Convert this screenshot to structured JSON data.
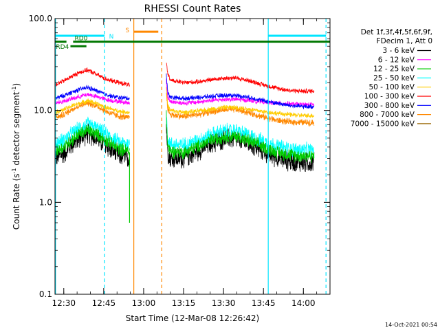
{
  "chart_data": {
    "type": "line",
    "title": "RHESSI Count Rates",
    "xlabel": "Start Time (12-Mar-08 12:26:42)",
    "ylabel_parts": [
      "Count Rate (s",
      "-1",
      " detector segment",
      "-1",
      ")"
    ],
    "ylabel": "Count Rate (s-1 detector segment-1)",
    "y_scale": "log",
    "ylim": [
      0.1,
      100.0
    ],
    "y_ticks": [
      {
        "value": 0.1,
        "label": "0.1"
      },
      {
        "value": 1.0,
        "label": "1.0"
      },
      {
        "value": 10.0,
        "label": "10.0"
      },
      {
        "value": 100.0,
        "label": "100.0"
      }
    ],
    "xlim_minutes": [
      746.7,
      850.0
    ],
    "x_ticks": [
      {
        "value": 750,
        "label": "12:30"
      },
      {
        "value": 765,
        "label": "12:45"
      },
      {
        "value": 780,
        "label": "13:00"
      },
      {
        "value": 795,
        "label": "13:15"
      },
      {
        "value": 810,
        "label": "13:30"
      },
      {
        "value": 825,
        "label": "13:45"
      },
      {
        "value": 840,
        "label": "14:00"
      }
    ],
    "grid": false,
    "legend_position": "right",
    "legend_header": [
      "Det 1f,3f,4f,5f,6f,9f,",
      "FDecim 1, Att 0"
    ],
    "series": [
      {
        "name": "3 - 6 keV",
        "color": "#000000",
        "pre": [
          [
            746.7,
            3.0
          ],
          [
            750,
            3.4
          ],
          [
            753,
            4.3
          ],
          [
            756,
            5.0
          ],
          [
            759,
            5.6
          ],
          [
            762,
            5.1
          ],
          [
            765,
            4.3
          ],
          [
            768,
            3.7
          ],
          [
            771,
            3.2
          ],
          [
            774.7,
            3.0
          ]
        ],
        "post": [
          [
            788.5,
            7.0
          ],
          [
            789,
            3.6
          ],
          [
            790,
            3.0
          ],
          [
            795,
            3.0
          ],
          [
            800,
            3.6
          ],
          [
            805,
            4.3
          ],
          [
            810,
            4.9
          ],
          [
            815,
            4.9
          ],
          [
            820,
            4.3
          ],
          [
            825,
            3.6
          ],
          [
            830,
            3.1
          ],
          [
            835,
            2.8
          ],
          [
            840,
            2.7
          ],
          [
            844,
            2.7
          ]
        ],
        "noise": 0.22
      },
      {
        "name": "6 - 12 keV",
        "color": "#ff00ff",
        "pre": [
          [
            746.7,
            12.0
          ],
          [
            750,
            12.6
          ],
          [
            753,
            13.4
          ],
          [
            756,
            14.2
          ],
          [
            759,
            15.0
          ],
          [
            762,
            14.2
          ],
          [
            765,
            13.4
          ],
          [
            768,
            12.8
          ],
          [
            771,
            12.5
          ],
          [
            774.7,
            12.0
          ]
        ],
        "post": [
          [
            788.5,
            22.0
          ],
          [
            789,
            14.0
          ],
          [
            790,
            12.5
          ],
          [
            795,
            12.0
          ],
          [
            800,
            12.3
          ],
          [
            805,
            12.8
          ],
          [
            810,
            13.2
          ],
          [
            815,
            13.2
          ],
          [
            820,
            12.8
          ],
          [
            825,
            12.4
          ],
          [
            830,
            12.0
          ],
          [
            835,
            11.8
          ],
          [
            840,
            11.6
          ],
          [
            844,
            11.6
          ]
        ],
        "noise": 0.05
      },
      {
        "name": "12 - 25 keV",
        "color": "#00cc00",
        "pre": [
          [
            746.7,
            3.6
          ],
          [
            750,
            4.0
          ],
          [
            753,
            4.8
          ],
          [
            756,
            5.6
          ],
          [
            759,
            6.1
          ],
          [
            762,
            5.6
          ],
          [
            765,
            4.9
          ],
          [
            768,
            4.3
          ],
          [
            771,
            3.8
          ],
          [
            774.7,
            3.6
          ]
        ],
        "post": [
          [
            788.5,
            9.0
          ],
          [
            789,
            4.2
          ],
          [
            790,
            3.6
          ],
          [
            795,
            3.5
          ],
          [
            800,
            4.0
          ],
          [
            805,
            4.7
          ],
          [
            810,
            5.2
          ],
          [
            815,
            5.2
          ],
          [
            820,
            4.6
          ],
          [
            825,
            4.0
          ],
          [
            830,
            3.5
          ],
          [
            835,
            3.3
          ],
          [
            840,
            3.2
          ],
          [
            844,
            3.2
          ]
        ],
        "noise": 0.14
      },
      {
        "name": "25 - 50 keV",
        "color": "#00ffff",
        "pre": [
          [
            746.7,
            4.3
          ],
          [
            750,
            4.8
          ],
          [
            753,
            5.6
          ],
          [
            756,
            6.4
          ],
          [
            759,
            7.1
          ],
          [
            762,
            6.5
          ],
          [
            765,
            5.7
          ],
          [
            768,
            5.0
          ],
          [
            771,
            4.5
          ],
          [
            774.7,
            4.3
          ]
        ],
        "post": [
          [
            788.5,
            10.0
          ],
          [
            789,
            5.0
          ],
          [
            790,
            4.3
          ],
          [
            795,
            4.2
          ],
          [
            800,
            4.7
          ],
          [
            805,
            5.4
          ],
          [
            810,
            6.0
          ],
          [
            815,
            6.0
          ],
          [
            820,
            5.3
          ],
          [
            825,
            4.6
          ],
          [
            830,
            4.1
          ],
          [
            835,
            3.8
          ],
          [
            840,
            3.7
          ],
          [
            844,
            3.7
          ]
        ],
        "noise": 0.16
      },
      {
        "name": "50 - 100 keV",
        "color": "#ffcc00",
        "pre": [
          [
            746.7,
            9.5
          ],
          [
            750,
            10.2
          ],
          [
            753,
            11.2
          ],
          [
            756,
            12.0
          ],
          [
            759,
            12.8
          ],
          [
            762,
            12.0
          ],
          [
            765,
            11.0
          ],
          [
            768,
            10.3
          ],
          [
            771,
            9.8
          ],
          [
            774.7,
            9.5
          ]
        ],
        "post": [
          [
            788.5,
            18.0
          ],
          [
            789,
            11.5
          ],
          [
            790,
            10.0
          ],
          [
            795,
            9.5
          ],
          [
            800,
            9.8
          ],
          [
            805,
            10.3
          ],
          [
            810,
            10.8
          ],
          [
            815,
            10.8
          ],
          [
            820,
            10.3
          ],
          [
            825,
            9.7
          ],
          [
            830,
            9.3
          ],
          [
            835,
            9.0
          ],
          [
            840,
            8.8
          ],
          [
            844,
            8.8
          ]
        ],
        "noise": 0.05
      },
      {
        "name": "100 - 300 keV",
        "color": "#ff0000",
        "pre": [
          [
            746.7,
            19.0
          ],
          [
            750,
            21.0
          ],
          [
            753,
            23.5
          ],
          [
            756,
            26.0
          ],
          [
            759,
            27.5
          ],
          [
            762,
            25.0
          ],
          [
            765,
            22.5
          ],
          [
            768,
            21.0
          ],
          [
            771,
            20.0
          ],
          [
            774.7,
            19.0
          ]
        ],
        "post": [
          [
            788.5,
            33.0
          ],
          [
            789,
            25.0
          ],
          [
            790,
            21.5
          ],
          [
            795,
            20.0
          ],
          [
            800,
            20.5
          ],
          [
            805,
            21.5
          ],
          [
            810,
            22.5
          ],
          [
            815,
            22.5
          ],
          [
            820,
            21.0
          ],
          [
            825,
            19.0
          ],
          [
            830,
            17.5
          ],
          [
            835,
            16.5
          ],
          [
            840,
            16.2
          ],
          [
            844,
            16.3
          ]
        ],
        "noise": 0.05
      },
      {
        "name": "300 - 800 keV",
        "color": "#0000ff",
        "pre": [
          [
            746.7,
            13.5
          ],
          [
            750,
            14.5
          ],
          [
            753,
            15.8
          ],
          [
            756,
            17.0
          ],
          [
            759,
            17.8
          ],
          [
            762,
            16.5
          ],
          [
            765,
            15.2
          ],
          [
            768,
            14.3
          ],
          [
            771,
            13.8
          ],
          [
            774.7,
            13.5
          ]
        ],
        "post": [
          [
            788.5,
            25.0
          ],
          [
            789,
            16.0
          ],
          [
            790,
            14.0
          ],
          [
            795,
            13.5
          ],
          [
            800,
            13.8
          ],
          [
            805,
            14.2
          ],
          [
            810,
            14.6
          ],
          [
            815,
            14.6
          ],
          [
            820,
            13.8
          ],
          [
            825,
            12.8
          ],
          [
            830,
            12.0
          ],
          [
            835,
            11.3
          ],
          [
            840,
            11.0
          ],
          [
            844,
            11.0
          ]
        ],
        "noise": 0.05
      },
      {
        "name": "800 - 7000 keV",
        "color": "#ff8800",
        "pre": [
          [
            746.7,
            8.3
          ],
          [
            750,
            9.0
          ],
          [
            753,
            10.3
          ],
          [
            756,
            11.3
          ],
          [
            759,
            12.1
          ],
          [
            762,
            11.3
          ],
          [
            765,
            10.1
          ],
          [
            768,
            9.2
          ],
          [
            771,
            8.6
          ],
          [
            774.7,
            8.3
          ]
        ],
        "post": [
          [
            788.5,
            16.0
          ],
          [
            789,
            10.5
          ],
          [
            790,
            9.0
          ],
          [
            795,
            8.6
          ],
          [
            800,
            9.0
          ],
          [
            805,
            9.6
          ],
          [
            810,
            10.2
          ],
          [
            815,
            10.2
          ],
          [
            820,
            9.4
          ],
          [
            825,
            8.5
          ],
          [
            830,
            7.8
          ],
          [
            835,
            7.5
          ],
          [
            840,
            7.4
          ],
          [
            844,
            7.4
          ]
        ],
        "noise": 0.07
      },
      {
        "name": "7000 - 15000 keV",
        "color": "#996600",
        "pre": [],
        "post": [],
        "noise": 0
      }
    ],
    "annotations": [
      {
        "label": "N",
        "color": "#00e5ff",
        "x_start": 746.7,
        "x_end": 765.3,
        "y": 65
      },
      {
        "label": "",
        "color": "#00e5ff",
        "x_start": 826.8,
        "x_end": 848.5,
        "y": 65
      },
      {
        "label": "RD0",
        "color": "#007700",
        "x_start": 753.5,
        "x_end": 850.0,
        "y": 56
      },
      {
        "label": "RD0",
        "color": "#007700",
        "x_start": 746.7,
        "x_end": 751.0,
        "y": 56
      },
      {
        "label": "RD4",
        "color": "#007700",
        "x_start": 752.5,
        "x_end": 758.5,
        "y": 50
      },
      {
        "label": "S",
        "color": "#ff8800",
        "x_start": 776.3,
        "x_end": 785.5,
        "y": 72
      }
    ],
    "vertical_lines": [
      {
        "x": 746.9,
        "color": "#00e5ff",
        "style": "solid"
      },
      {
        "x": 765.3,
        "color": "#00e5ff",
        "style": "dashed"
      },
      {
        "x": 826.8,
        "color": "#00e5ff",
        "style": "solid"
      },
      {
        "x": 848.5,
        "color": "#00e5ff",
        "style": "dashed"
      },
      {
        "x": 776.3,
        "color": "#ff8800",
        "style": "solid"
      },
      {
        "x": 786.8,
        "color": "#ff8800",
        "style": "dashed"
      }
    ],
    "dropout": {
      "x": 774.7,
      "min_value": 0.6
    }
  },
  "timestamp": "14-Oct-2021 00:54"
}
